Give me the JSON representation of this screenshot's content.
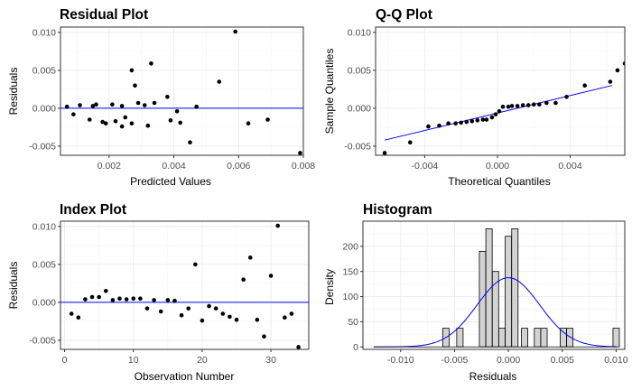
{
  "colors": {
    "points": "#000000",
    "line": "#0000ff",
    "bar_fill": "#d3d3d3",
    "bar_stroke": "#000000",
    "grid": "#ebebeb",
    "frame": "#333333"
  },
  "chart_data": [
    {
      "id": "residual",
      "type": "scatter",
      "title": "Residual Plot",
      "xlabel": "Predicted Values",
      "ylabel": "Residuals",
      "xlim": [
        0.0005,
        0.008
      ],
      "ylim": [
        -0.0062,
        0.0107
      ],
      "xticks": [
        0.002,
        0.004,
        0.006,
        0.008
      ],
      "xtick_labels": [
        "0.002",
        "0.004",
        "0.006",
        "0.008"
      ],
      "yticks": [
        -0.005,
        0.0,
        0.005,
        0.01
      ],
      "ytick_labels": [
        "-0.005",
        "0.000",
        "0.005",
        "0.010"
      ],
      "hline": 0,
      "grid": true,
      "points": [
        {
          "x": 0.0007,
          "y": 0.0002
        },
        {
          "x": 0.0009,
          "y": -0.0008
        },
        {
          "x": 0.0011,
          "y": 0.0004
        },
        {
          "x": 0.0014,
          "y": -0.0015
        },
        {
          "x": 0.0015,
          "y": 0.0003
        },
        {
          "x": 0.0016,
          "y": 0.0005
        },
        {
          "x": 0.0018,
          "y": -0.0018
        },
        {
          "x": 0.0019,
          "y": -0.002
        },
        {
          "x": 0.0021,
          "y": 0.0005
        },
        {
          "x": 0.0022,
          "y": -0.0017
        },
        {
          "x": 0.0024,
          "y": 0.0003
        },
        {
          "x": 0.0024,
          "y": -0.0024
        },
        {
          "x": 0.0025,
          "y": -0.0012
        },
        {
          "x": 0.0027,
          "y": 0.005
        },
        {
          "x": 0.0028,
          "y": 0.003
        },
        {
          "x": 0.0027,
          "y": -0.002
        },
        {
          "x": 0.0029,
          "y": 0.0007
        },
        {
          "x": 0.0031,
          "y": 0.0004
        },
        {
          "x": 0.0032,
          "y": -0.0023
        },
        {
          "x": 0.0033,
          "y": 0.0059
        },
        {
          "x": 0.0034,
          "y": 0.0007
        },
        {
          "x": 0.0038,
          "y": 0.0015
        },
        {
          "x": 0.0039,
          "y": -0.0016
        },
        {
          "x": 0.0041,
          "y": -0.0004
        },
        {
          "x": 0.0042,
          "y": -0.0019
        },
        {
          "x": 0.0045,
          "y": -0.0045
        },
        {
          "x": 0.0047,
          "y": 0.0002
        },
        {
          "x": 0.0054,
          "y": 0.0035
        },
        {
          "x": 0.0059,
          "y": 0.0101
        },
        {
          "x": 0.0063,
          "y": -0.002
        },
        {
          "x": 0.0069,
          "y": -0.0015
        },
        {
          "x": 0.0079,
          "y": -0.0059
        }
      ]
    },
    {
      "id": "qq",
      "type": "scatter",
      "title": "Q-Q Plot",
      "xlabel": "Theoretical Quantiles",
      "ylabel": "Sample Quantiles",
      "xlim": [
        -0.0067,
        0.007
      ],
      "ylim": [
        -0.0062,
        0.0107
      ],
      "xticks": [
        -0.004,
        0.0,
        0.004
      ],
      "xtick_labels": [
        "-0.004",
        "0.000",
        "0.004"
      ],
      "yticks": [
        -0.005,
        0.0,
        0.005,
        0.01
      ],
      "ytick_labels": [
        "-0.005",
        "0.000",
        "0.005",
        "0.010"
      ],
      "ref_line": {
        "x": [
          -0.0062,
          0.0063
        ],
        "y": [
          -0.0042,
          0.003
        ]
      },
      "grid": true,
      "points": [
        {
          "x": -0.0062,
          "y": -0.0059
        },
        {
          "x": -0.0048,
          "y": -0.0045
        },
        {
          "x": -0.0038,
          "y": -0.0024
        },
        {
          "x": -0.0032,
          "y": -0.0023
        },
        {
          "x": -0.0027,
          "y": -0.002
        },
        {
          "x": -0.0023,
          "y": -0.002
        },
        {
          "x": -0.002,
          "y": -0.0019
        },
        {
          "x": -0.0017,
          "y": -0.0018
        },
        {
          "x": -0.0014,
          "y": -0.0017
        },
        {
          "x": -0.0011,
          "y": -0.0016
        },
        {
          "x": -0.0008,
          "y": -0.0015
        },
        {
          "x": -0.0006,
          "y": -0.0015
        },
        {
          "x": -0.0003,
          "y": -0.0012
        },
        {
          "x": -0.0001,
          "y": -0.0008
        },
        {
          "x": 0.0001,
          "y": -0.0004
        },
        {
          "x": 0.0003,
          "y": 0.0002
        },
        {
          "x": 0.0006,
          "y": 0.0002
        },
        {
          "x": 0.0008,
          "y": 0.0003
        },
        {
          "x": 0.0011,
          "y": 0.0003
        },
        {
          "x": 0.0014,
          "y": 0.0004
        },
        {
          "x": 0.0017,
          "y": 0.0004
        },
        {
          "x": 0.002,
          "y": 0.0005
        },
        {
          "x": 0.0023,
          "y": 0.0005
        },
        {
          "x": 0.0027,
          "y": 0.0007
        },
        {
          "x": 0.0032,
          "y": 0.0007
        },
        {
          "x": 0.0038,
          "y": 0.0015
        },
        {
          "x": 0.0048,
          "y": 0.003
        },
        {
          "x": 0.0062,
          "y": 0.0035
        },
        {
          "x": 0.0066,
          "y": 0.005
        },
        {
          "x": 0.007,
          "y": 0.0059
        },
        {
          "x": 0.0073,
          "y": 0.0101
        }
      ]
    },
    {
      "id": "index",
      "type": "scatter",
      "title": "Index Plot",
      "xlabel": "Observation Number",
      "ylabel": "Residuals",
      "xlim": [
        -0.6,
        35.5
      ],
      "ylim": [
        -0.0062,
        0.0107
      ],
      "xticks": [
        0,
        10,
        20,
        30
      ],
      "xtick_labels": [
        "0",
        "10",
        "20",
        "30"
      ],
      "yticks": [
        -0.005,
        0.0,
        0.005,
        0.01
      ],
      "ytick_labels": [
        "-0.005",
        "0.000",
        "0.005",
        "0.010"
      ],
      "hline": 0,
      "grid": true,
      "points": [
        {
          "x": 1,
          "y": -0.0015
        },
        {
          "x": 2,
          "y": -0.002
        },
        {
          "x": 3,
          "y": 0.0004
        },
        {
          "x": 4,
          "y": 0.0007
        },
        {
          "x": 5,
          "y": 0.0007
        },
        {
          "x": 6,
          "y": 0.0015
        },
        {
          "x": 7,
          "y": 0.0003
        },
        {
          "x": 8,
          "y": 0.0005
        },
        {
          "x": 9,
          "y": 0.0004
        },
        {
          "x": 10,
          "y": 0.0005
        },
        {
          "x": 11,
          "y": 0.0005
        },
        {
          "x": 12,
          "y": -0.0008
        },
        {
          "x": 13,
          "y": 0.0003
        },
        {
          "x": 14,
          "y": -0.0012
        },
        {
          "x": 15,
          "y": 0.0003
        },
        {
          "x": 16,
          "y": 0.0002
        },
        {
          "x": 17,
          "y": -0.0017
        },
        {
          "x": 18,
          "y": -0.0008
        },
        {
          "x": 19,
          "y": 0.005
        },
        {
          "x": 20,
          "y": -0.0024
        },
        {
          "x": 21,
          "y": -0.0005
        },
        {
          "x": 22,
          "y": -0.0008
        },
        {
          "x": 23,
          "y": -0.0015
        },
        {
          "x": 24,
          "y": -0.0019
        },
        {
          "x": 25,
          "y": -0.0023
        },
        {
          "x": 26,
          "y": 0.003
        },
        {
          "x": 27,
          "y": 0.0059
        },
        {
          "x": 28,
          "y": -0.0023
        },
        {
          "x": 29,
          "y": -0.0045
        },
        {
          "x": 30,
          "y": 0.0035
        },
        {
          "x": 31,
          "y": 0.0101
        },
        {
          "x": 32,
          "y": -0.002
        },
        {
          "x": 33,
          "y": -0.0015
        },
        {
          "x": 34,
          "y": -0.0059
        }
      ]
    },
    {
      "id": "histogram",
      "type": "bar",
      "title": "Histogram",
      "xlabel": "Residuals",
      "ylabel": "Density",
      "xlim": [
        -0.0135,
        0.0108
      ],
      "ylim": [
        -5,
        250
      ],
      "xticks": [
        -0.01,
        -0.005,
        0.0,
        0.005,
        0.01
      ],
      "xtick_labels": [
        "-0.010",
        "-0.005",
        "0.000",
        "0.005",
        "0.010"
      ],
      "yticks": [
        0,
        50,
        100,
        150,
        200
      ],
      "ytick_labels": [
        "0",
        "50",
        "100",
        "150",
        "200"
      ],
      "grid": true,
      "bin_width": 0.00059,
      "bins": [
        {
          "x": -0.0058,
          "density": 37
        },
        {
          "x": -0.0045,
          "density": 37
        },
        {
          "x": -0.0024,
          "density": 190
        },
        {
          "x": -0.0018,
          "density": 235
        },
        {
          "x": -0.0012,
          "density": 150
        },
        {
          "x": -0.0006,
          "density": 37
        },
        {
          "x": 0.0,
          "density": 220
        },
        {
          "x": 0.0006,
          "density": 235
        },
        {
          "x": 0.0015,
          "density": 37
        },
        {
          "x": 0.0027,
          "density": 37
        },
        {
          "x": 0.0033,
          "density": 37
        },
        {
          "x": 0.0051,
          "density": 37
        },
        {
          "x": 0.0057,
          "density": 37
        },
        {
          "x": 0.01,
          "density": 37
        }
      ],
      "density_curve": {
        "mean": 0.0,
        "sd": 0.0029,
        "x_range": [
          -0.0125,
          0.01
        ],
        "color": "#0000ff"
      },
      "baseline": 0
    }
  ]
}
